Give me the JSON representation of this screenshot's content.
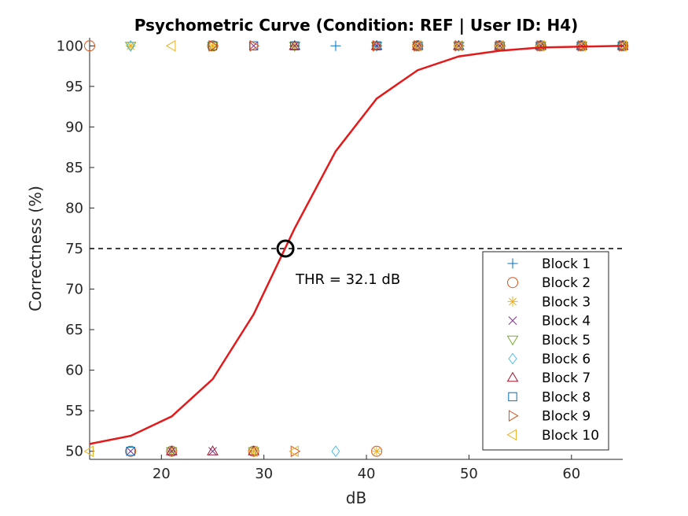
{
  "chart_data": {
    "type": "line",
    "title": "Psychometric Curve (Condition: REF | User ID: H4)",
    "xlabel": "dB",
    "ylabel": "Correctness (%)",
    "xlim": [
      13,
      65
    ],
    "ylim": [
      49,
      101
    ],
    "xticks": [
      20,
      30,
      40,
      50,
      60
    ],
    "yticks": [
      50,
      55,
      60,
      65,
      70,
      75,
      80,
      85,
      90,
      95,
      100
    ],
    "grid": false,
    "legend_position": "bottom-right",
    "fit_curve": {
      "color": "#e31a1c",
      "x": [
        13,
        17,
        21,
        25,
        29,
        33,
        37,
        41,
        45,
        49,
        53,
        57,
        61,
        65
      ],
      "y": [
        50.9,
        51.9,
        54.3,
        58.9,
        66.9,
        77.5,
        87.0,
        93.5,
        97.0,
        98.7,
        99.4,
        99.8,
        99.9,
        100.0
      ]
    },
    "threshold": {
      "x": 32.1,
      "y": 75,
      "label": "THR = 32.1 dB",
      "reference_line_y": 75
    },
    "series": [
      {
        "name": "Block 1",
        "marker": "plus",
        "color": "#0072bd",
        "points": [
          [
            21,
            50
          ],
          [
            33,
            100
          ],
          [
            37,
            100
          ],
          [
            41,
            100
          ],
          [
            45,
            100
          ],
          [
            53,
            100
          ],
          [
            57,
            100
          ],
          [
            61,
            100
          ],
          [
            65,
            100
          ]
        ]
      },
      {
        "name": "Block 2",
        "marker": "circle",
        "color": "#d95319",
        "points": [
          [
            13,
            100
          ],
          [
            17,
            50
          ],
          [
            21,
            50
          ],
          [
            25,
            100
          ],
          [
            29,
            50
          ],
          [
            41,
            50
          ],
          [
            45,
            100
          ],
          [
            53,
            100
          ],
          [
            57,
            100
          ],
          [
            61,
            100
          ],
          [
            65,
            100
          ]
        ]
      },
      {
        "name": "Block 3",
        "marker": "asterisk",
        "color": "#edb120",
        "points": [
          [
            17,
            100
          ],
          [
            21,
            50
          ],
          [
            25,
            100
          ],
          [
            29,
            50
          ],
          [
            33,
            100
          ],
          [
            41,
            50
          ],
          [
            45,
            100
          ],
          [
            49,
            100
          ],
          [
            53,
            100
          ],
          [
            57,
            100
          ],
          [
            61,
            100
          ],
          [
            65,
            100
          ]
        ]
      },
      {
        "name": "Block 4",
        "marker": "x",
        "color": "#7e2f8e",
        "points": [
          [
            17,
            50
          ],
          [
            21,
            50
          ],
          [
            25,
            50
          ],
          [
            29,
            100
          ],
          [
            33,
            100
          ],
          [
            41,
            100
          ],
          [
            45,
            100
          ],
          [
            49,
            100
          ],
          [
            53,
            100
          ],
          [
            57,
            100
          ],
          [
            61,
            100
          ],
          [
            65,
            100
          ]
        ]
      },
      {
        "name": "Block 5",
        "marker": "triangle-down",
        "color": "#77ac30",
        "points": [
          [
            17,
            100
          ],
          [
            21,
            50
          ],
          [
            25,
            100
          ],
          [
            29,
            50
          ],
          [
            33,
            100
          ],
          [
            41,
            100
          ],
          [
            45,
            100
          ],
          [
            49,
            100
          ],
          [
            53,
            100
          ],
          [
            57,
            100
          ],
          [
            61,
            100
          ],
          [
            65,
            100
          ]
        ]
      },
      {
        "name": "Block 6",
        "marker": "diamond",
        "color": "#4dbeee",
        "points": [
          [
            17,
            100
          ],
          [
            37,
            50
          ],
          [
            41,
            100
          ],
          [
            45,
            100
          ],
          [
            49,
            100
          ],
          [
            53,
            100
          ],
          [
            57,
            100
          ],
          [
            61,
            100
          ],
          [
            65,
            100
          ]
        ]
      },
      {
        "name": "Block 7",
        "marker": "triangle-up",
        "color": "#a2142f",
        "points": [
          [
            21,
            50
          ],
          [
            25,
            50
          ],
          [
            29,
            50
          ],
          [
            33,
            100
          ],
          [
            41,
            100
          ],
          [
            45,
            100
          ],
          [
            49,
            100
          ],
          [
            53,
            100
          ],
          [
            57,
            100
          ],
          [
            61,
            100
          ],
          [
            65,
            100
          ]
        ]
      },
      {
        "name": "Block 8",
        "marker": "square",
        "color": "#0072bd",
        "points": [
          [
            17,
            50
          ],
          [
            25,
            100
          ],
          [
            29,
            100
          ],
          [
            33,
            100
          ],
          [
            41,
            100
          ],
          [
            45,
            100
          ],
          [
            49,
            100
          ],
          [
            53,
            100
          ],
          [
            57,
            100
          ],
          [
            61,
            100
          ],
          [
            65,
            100
          ]
        ]
      },
      {
        "name": "Block 9",
        "marker": "triangle-right",
        "color": "#d95319",
        "points": [
          [
            25,
            100
          ],
          [
            29,
            100
          ],
          [
            33,
            50
          ],
          [
            41,
            100
          ],
          [
            45,
            100
          ],
          [
            49,
            100
          ],
          [
            53,
            100
          ],
          [
            57,
            100
          ],
          [
            61,
            100
          ],
          [
            65,
            100
          ]
        ]
      },
      {
        "name": "Block 10",
        "marker": "triangle-left",
        "color": "#edb120",
        "points": [
          [
            13,
            50
          ],
          [
            21,
            100
          ],
          [
            29,
            50
          ],
          [
            33,
            50
          ],
          [
            45,
            100
          ],
          [
            49,
            100
          ],
          [
            53,
            100
          ],
          [
            57,
            100
          ],
          [
            61,
            100
          ],
          [
            65,
            100
          ]
        ]
      }
    ]
  }
}
